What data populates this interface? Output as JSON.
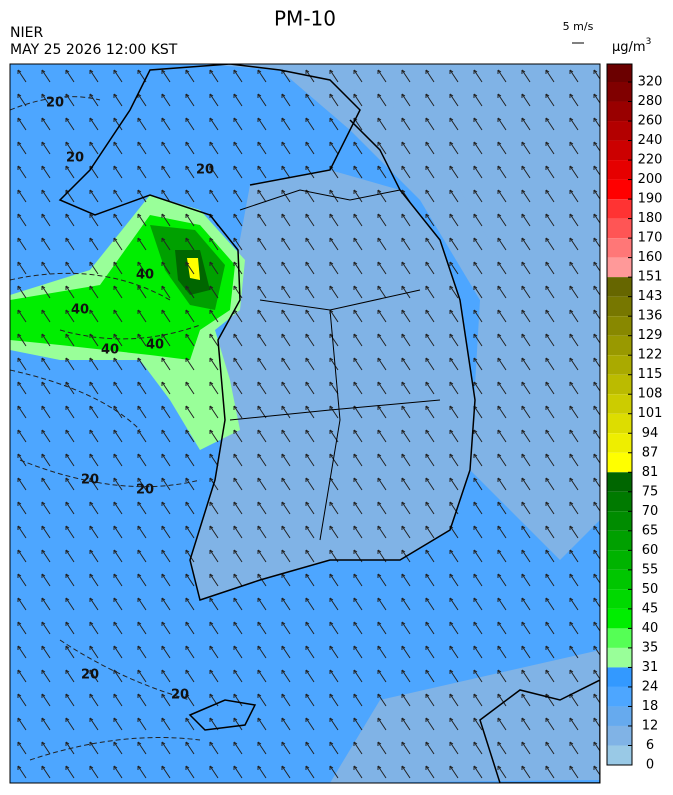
{
  "title": "PM-10",
  "agency": "NIER",
  "timestamp": "MAY 25 2026 12:00 KST",
  "wind_scale": "5 m/s",
  "unit": "µg/m",
  "unit_exponent": "3",
  "contour_labels": [
    "20",
    "20",
    "20",
    "40",
    "40",
    "40",
    "40",
    "20",
    "20",
    "20",
    "20"
  ],
  "colorbar": {
    "ticks": [
      320,
      280,
      260,
      240,
      220,
      200,
      190,
      180,
      170,
      160,
      151,
      143,
      136,
      129,
      122,
      115,
      108,
      101,
      94,
      87,
      81,
      75,
      70,
      65,
      60,
      55,
      50,
      45,
      40,
      35,
      31,
      24,
      18,
      12,
      6,
      0
    ],
    "colors": [
      "#6b0000",
      "#800000",
      "#990000",
      "#b30000",
      "#cc0000",
      "#e60000",
      "#ff0000",
      "#ff3333",
      "#ff5555",
      "#ff7777",
      "#ff9999",
      "#666600",
      "#777700",
      "#888800",
      "#999900",
      "#aaaa00",
      "#bbbb00",
      "#cccc00",
      "#dddd00",
      "#eeee00",
      "#ffff00",
      "#006600",
      "#007a00",
      "#008c00",
      "#00a000",
      "#00b300",
      "#00c600",
      "#00d900",
      "#00ee00",
      "#55ff55",
      "#99ff99",
      "#3399ff",
      "#4da6ff",
      "#66aaee",
      "#80b3e6",
      "#99c9e6"
    ]
  }
}
